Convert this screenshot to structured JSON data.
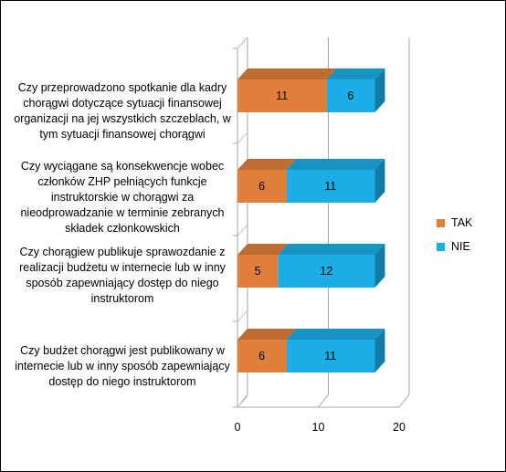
{
  "chart_data": {
    "type": "bar",
    "orientation": "horizontal",
    "stacked": true,
    "style": "3d",
    "categories": [
      "Czy przeprowadzono spotkanie dla kadry chorągwi dotyczące sytuacji finansowej organizacji na jej wszystkich szczeblach, w tym sytuacji finansowej chorągwi",
      "Czy wyciągane są konsekwencje wobec członków ZHP pełniących funkcje instruktorskie w chorągwi za nieodprowadzanie w terminie zebranych składek członkowskich",
      "Czy chorągiew publikuje sprawozdanie z realizacji budżetu w internecie lub w inny sposób zapewniający dostęp do niego instruktorom",
      "Czy budżet chorągwi jest publikowany w internecie lub w inny sposób zapewniający dostęp do niego instruktorom"
    ],
    "series": [
      {
        "name": "TAK",
        "values": [
          11,
          6,
          5,
          6
        ],
        "color": "#E07F3A"
      },
      {
        "name": "NIE",
        "values": [
          6,
          11,
          12,
          11
        ],
        "color": "#1BAEE6"
      }
    ],
    "xlim": [
      0,
      20
    ],
    "xticks": [
      "0",
      "10",
      "20"
    ],
    "grid": true,
    "legend": "right"
  }
}
